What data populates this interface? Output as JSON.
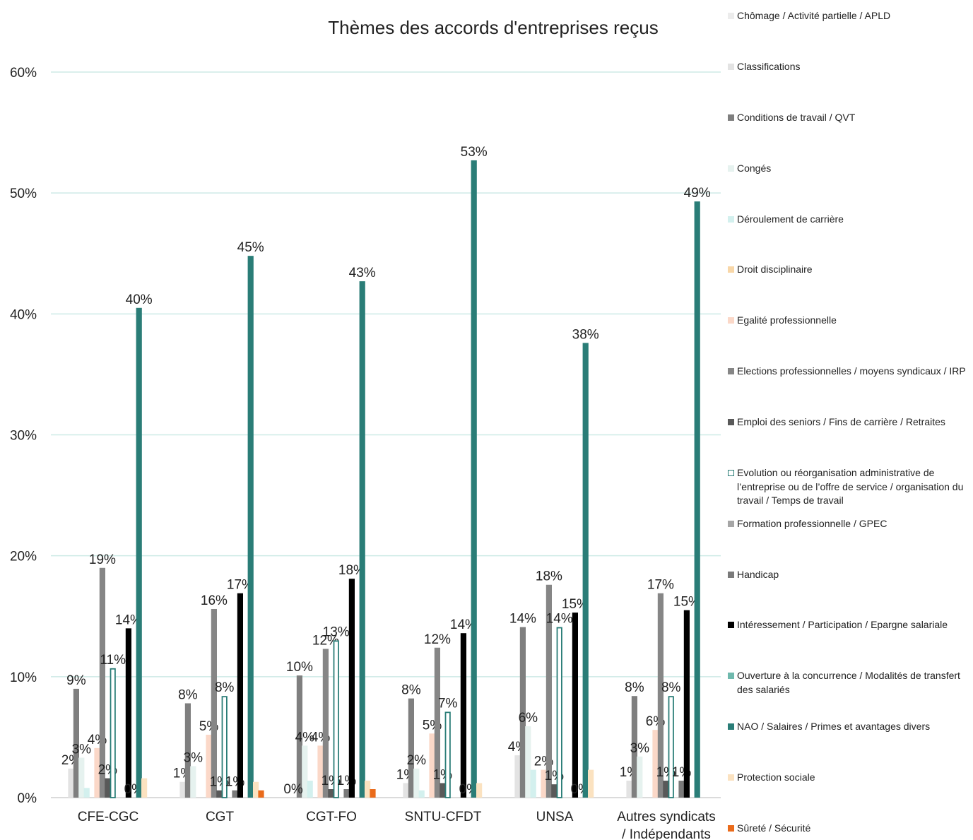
{
  "chart_data": {
    "type": "bar",
    "title": "Thèmes des accords d'entreprises reçus",
    "xlabel": "",
    "ylabel": "",
    "ylim": [
      0,
      60
    ],
    "yticks": [
      "0%",
      "10%",
      "20%",
      "30%",
      "40%",
      "50%",
      "60%"
    ],
    "grid": true,
    "legend_position": "right",
    "categories": [
      "CFE-CGC",
      "CGT",
      "CGT-FO",
      "SNTU-CFDT",
      "UNSA",
      "Autres syndicats / Indépendants"
    ],
    "series": [
      {
        "name": "Chômage / Activité partielle / APLD",
        "color": "#ececec",
        "values": [
          null,
          null,
          null,
          null,
          null,
          null
        ],
        "labels": [
          "",
          "",
          "",
          "",
          "",
          ""
        ]
      },
      {
        "name": "Classifications",
        "color": "#e3e3e3",
        "values": [
          2.4,
          1.3,
          null,
          1.2,
          3.5,
          1.4
        ],
        "labels": [
          "2%",
          "1%",
          "",
          "1%",
          "4%",
          "1%"
        ]
      },
      {
        "name": "Conditions de travail / QVT",
        "color": "#7f7f7f",
        "values": [
          9.0,
          7.8,
          10.1,
          8.2,
          14.1,
          8.4
        ],
        "labels": [
          "9%",
          "8%",
          "10%",
          "8%",
          "14%",
          "8%"
        ]
      },
      {
        "name": "Congés",
        "color": "#e6f2ef",
        "values": [
          3.3,
          2.6,
          4.3,
          2.4,
          5.9,
          3.4
        ],
        "labels": [
          "3%",
          "3%",
          "4%",
          "2%",
          "6%",
          "3%"
        ]
      },
      {
        "name": "Déroulement de carrière",
        "color": "#d3f0ee",
        "values": [
          0.8,
          null,
          1.4,
          0.6,
          2.3,
          null
        ],
        "labels": [
          "",
          "",
          "",
          "",
          "",
          ""
        ]
      },
      {
        "name": "Droit disciplinaire",
        "color": "#f8d7a8",
        "values": [
          null,
          null,
          null,
          null,
          null,
          null
        ],
        "labels": [
          "",
          "",
          "",
          "",
          "",
          ""
        ]
      },
      {
        "name": "Egalité professionnelle",
        "color": "#fbd8c8",
        "values": [
          4.1,
          5.2,
          4.3,
          5.3,
          2.3,
          5.6
        ],
        "labels": [
          "4%",
          "5%",
          "4%",
          "5%",
          "2%",
          "6%"
        ]
      },
      {
        "name": "Elections professionnelles / moyens syndicaux / IRP",
        "color": "#868686",
        "values": [
          19.0,
          15.6,
          12.3,
          12.4,
          17.6,
          16.9
        ],
        "labels": [
          "19%",
          "16%",
          "12%",
          "12%",
          "18%",
          "17%"
        ]
      },
      {
        "name": "Emploi des seniors / Fins de carrière / Retraites",
        "color": "#595959",
        "values": [
          1.6,
          0.6,
          0.7,
          1.2,
          1.1,
          1.4
        ],
        "labels": [
          "2%",
          "1%",
          "1%",
          "1%",
          "1%",
          "1%"
        ]
      },
      {
        "name": "Evolution ou réorganisation administrative de l’entreprise ou de l’offre de service / organisation du travail / Temps de travail",
        "color": "#2a7d77",
        "outline": true,
        "values": [
          10.7,
          8.4,
          13.0,
          7.1,
          14.1,
          8.4
        ],
        "labels": [
          "11%",
          "8%",
          "13%",
          "7%",
          "14%",
          "8%"
        ]
      },
      {
        "name": "Formation professionnelle / GPEC",
        "color": "#a6a6a6",
        "values": [
          null,
          null,
          null,
          null,
          null,
          null
        ],
        "labels": [
          "",
          "",
          "",
          "",
          "",
          ""
        ]
      },
      {
        "name": "Handicap",
        "color": "#7a7a7a",
        "values": [
          null,
          0.6,
          0.7,
          null,
          null,
          1.4
        ],
        "labels": [
          "",
          "1%",
          "1%",
          "",
          "",
          "1%"
        ]
      },
      {
        "name": "Intéressement / Participation / Epargne salariale",
        "color": "#000000",
        "values": [
          14.0,
          16.9,
          18.1,
          13.6,
          15.3,
          15.5
        ],
        "labels": [
          "14%",
          "17%",
          "18%",
          "14%",
          "15%",
          "15%"
        ]
      },
      {
        "name": "Ouverture à la concurrence / Modalités de transfert des salariés",
        "color": "#6fb9ad",
        "values": [
          0,
          null,
          null,
          0,
          0,
          null
        ],
        "labels": [
          "0%",
          "",
          "",
          "0%",
          "0%",
          ""
        ]
      },
      {
        "name": "NAO / Salaires / Primes et avantages divers",
        "color": "#2a7d77",
        "values": [
          40.5,
          44.8,
          42.7,
          52.7,
          37.6,
          49.3
        ],
        "labels": [
          "40%",
          "45%",
          "43%",
          "53%",
          "38%",
          "49%"
        ]
      },
      {
        "name": "Protection sociale",
        "color": "#fbe2c0",
        "values": [
          1.6,
          1.3,
          1.4,
          1.2,
          2.3,
          null
        ],
        "labels": [
          "",
          "",
          "",
          "",
          "",
          ""
        ]
      },
      {
        "name": "Sûreté / Sécurité",
        "color": "#ea6b1b",
        "values": [
          null,
          0.6,
          0.7,
          null,
          null,
          null
        ],
        "labels": [
          "",
          "",
          "",
          "",
          "",
          ""
        ]
      }
    ],
    "extra_labels": [
      {
        "category": 2,
        "series": 0,
        "text": "0%",
        "value": 0
      }
    ]
  }
}
